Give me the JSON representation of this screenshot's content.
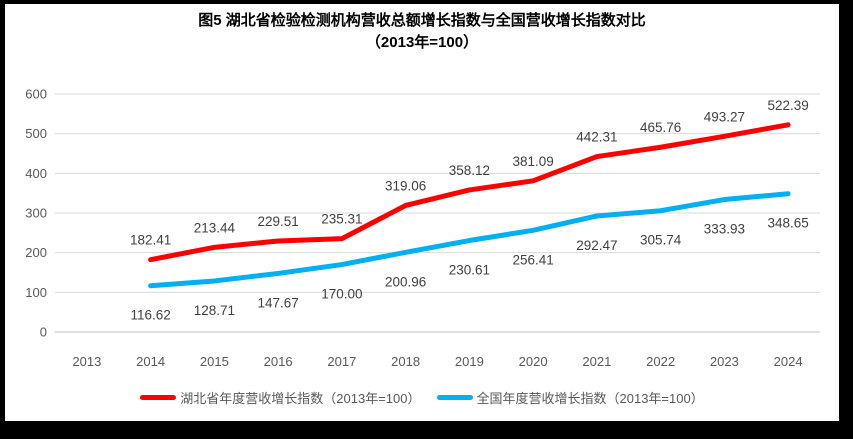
{
  "window": {
    "border_color": "#000000",
    "background": "#FFFFFF"
  },
  "chart_data": {
    "type": "line",
    "title": "图5 湖北省检验检测机构营收总额增长指数与全国营收增长指数对比",
    "subtitle": "（2013年=100）",
    "categories": [
      "2013",
      "2014",
      "2015",
      "2016",
      "2017",
      "2018",
      "2019",
      "2020",
      "2021",
      "2022",
      "2023",
      "2024"
    ],
    "series": [
      {
        "name": "湖北省年度营收增长指数（2013年=100）",
        "color": "#FF0000",
        "label_position": "above",
        "values": [
          null,
          182.41,
          213.44,
          229.51,
          235.31,
          319.06,
          358.12,
          381.09,
          442.31,
          465.76,
          493.27,
          522.39
        ]
      },
      {
        "name": "全国年度营收增长指数（2013年=100）",
        "color": "#00B0F0",
        "label_position": "below",
        "values": [
          null,
          116.62,
          128.71,
          147.67,
          170.0,
          200.96,
          230.61,
          256.41,
          292.47,
          305.74,
          333.93,
          348.65
        ]
      }
    ],
    "ylim": [
      0,
      600
    ],
    "ytick_step": 100,
    "grid": true,
    "data_labels": true,
    "label_decimals": 2,
    "legend_position": "bottom",
    "colors": {
      "gridline": "#D9D9D9",
      "axis_line": "#BFBFBF",
      "axis_text": "#595959",
      "data_label_text": "#404040",
      "title_text": "#000000",
      "legend_text": "#595959"
    }
  }
}
